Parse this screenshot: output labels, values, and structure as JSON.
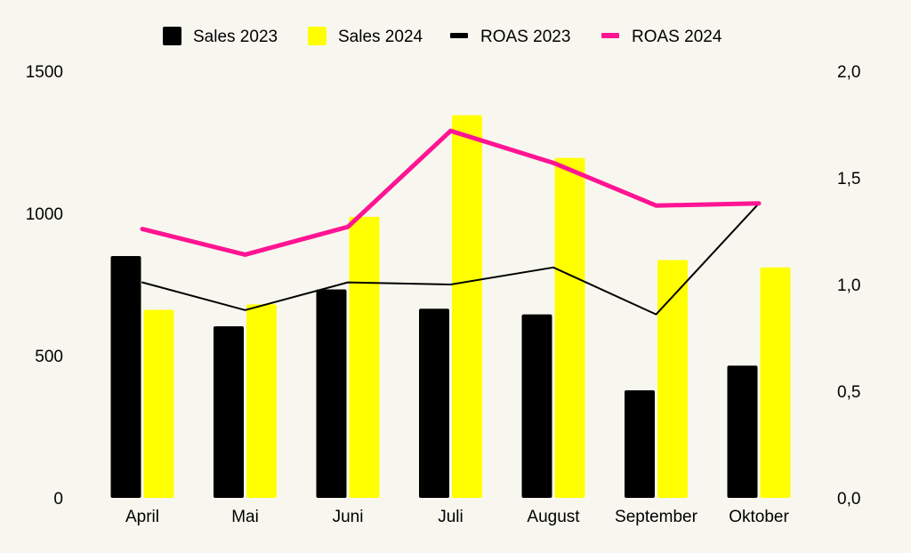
{
  "chart_data": {
    "type": "bar+line",
    "title": "",
    "categories": [
      "April",
      "Mai",
      "Juni",
      "Juli",
      "August",
      "September",
      "Oktober"
    ],
    "series": [
      {
        "name": "Sales 2023",
        "kind": "bar",
        "axis": "left",
        "color": "#000000",
        "values": [
          850,
          603,
          733,
          665,
          645,
          378,
          465
        ]
      },
      {
        "name": "Sales 2024",
        "kind": "bar",
        "axis": "left",
        "color": "#ffff00",
        "values": [
          661,
          680,
          988,
          1345,
          1195,
          836,
          810
        ]
      },
      {
        "name": "ROAS 2023",
        "kind": "line",
        "axis": "right",
        "color": "#000000",
        "values": [
          1.01,
          0.88,
          1.01,
          1.0,
          1.08,
          0.86,
          1.38
        ]
      },
      {
        "name": "ROAS 2024",
        "kind": "line",
        "axis": "right",
        "color": "#ff1493",
        "values": [
          1.26,
          1.14,
          1.27,
          1.72,
          1.57,
          1.37,
          1.38
        ]
      }
    ],
    "y_left": {
      "min": 0,
      "max": 1500,
      "ticks": [
        0,
        500,
        1000,
        1500
      ],
      "tick_labels": [
        "0",
        "500",
        "1000",
        "1500"
      ]
    },
    "y_right": {
      "min": 0,
      "max": 2.0,
      "ticks": [
        0,
        0.5,
        1.0,
        1.5,
        2.0
      ],
      "tick_labels": [
        "0,0",
        "0,5",
        "1,0",
        "1,5",
        "2,0"
      ]
    },
    "legend_position": "top-center",
    "grid": false,
    "background": "#f8f7ef"
  }
}
